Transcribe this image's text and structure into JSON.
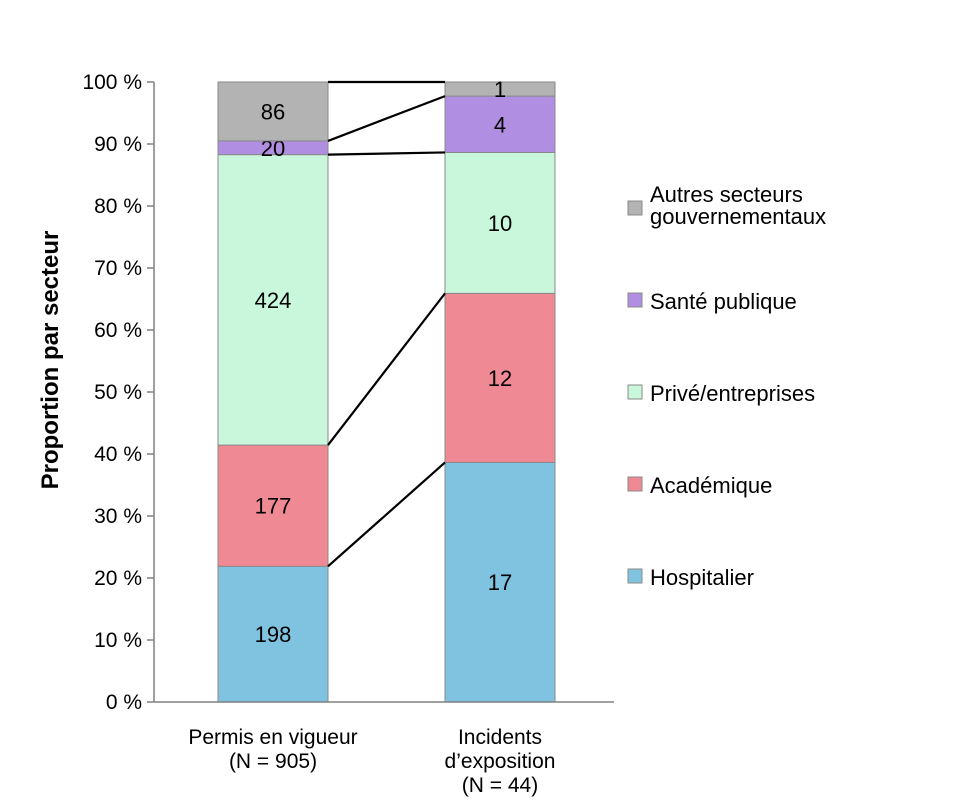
{
  "chart_data": {
    "type": "stacked-bar-100",
    "ylabel": "Proportion par secteur",
    "yticks": [
      "0 %",
      "10 %",
      "20 %",
      "30 %",
      "40 %",
      "50 %",
      "60 %",
      "70 %",
      "80 %",
      "90 %",
      "100 %"
    ],
    "ylim": [
      0,
      100
    ],
    "categories": [
      {
        "lines": [
          "Permis en vigueur",
          "(N = 905)"
        ]
      },
      {
        "lines": [
          "Incidents",
          "d’exposition",
          "(N = 44)"
        ]
      }
    ],
    "series": [
      {
        "name": "Hospitalier",
        "color": "#7fc3e0",
        "values": [
          198,
          17
        ]
      },
      {
        "name": "Académique",
        "color": "#ef8994",
        "values": [
          177,
          12
        ]
      },
      {
        "name": "Privé/entreprises",
        "color": "#c8f7dc",
        "values": [
          424,
          10
        ]
      },
      {
        "name": "Santé publique",
        "color": "#b08ee2",
        "values": [
          20,
          4
        ]
      },
      {
        "name": "Autres secteurs gouvernementaux",
        "legend_lines": [
          "Autres secteurs",
          "gouvernementaux"
        ],
        "color": "#b3b3b3",
        "values": [
          86,
          1
        ]
      }
    ],
    "legend_position": "right",
    "grid": false,
    "connector_lines": true
  }
}
